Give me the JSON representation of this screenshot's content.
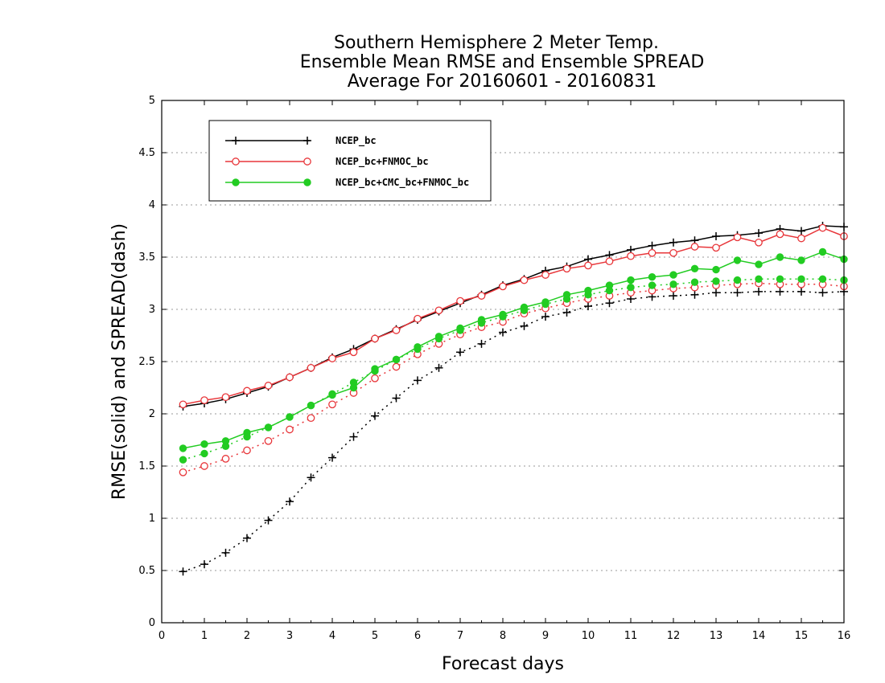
{
  "chart_data": {
    "type": "line",
    "title_lines": [
      "Southern Hemisphere 2 Meter Temp.",
      "Ensemble Mean RMSE and Ensemble SPREAD",
      "Average For 20160601 - 20160831"
    ],
    "xlabel": "Forecast days",
    "ylabel": "RMSE(solid) and SPREAD(dash)",
    "xlim": [
      0,
      16
    ],
    "ylim": [
      0,
      5
    ],
    "x_ticks": [
      "0",
      "1",
      "2",
      "3",
      "4",
      "5",
      "6",
      "7",
      "8",
      "9",
      "10",
      "11",
      "12",
      "13",
      "14",
      "15",
      "16"
    ],
    "y_ticks": [
      "0",
      "0.5",
      "1",
      "1.5",
      "2",
      "2.5",
      "3",
      "3.5",
      "4",
      "4.5",
      "5"
    ],
    "grid": true,
    "legend_placement": "top-left",
    "x": [
      0.5,
      1,
      1.5,
      2,
      2.5,
      3,
      3.5,
      4,
      4.5,
      5,
      5.5,
      6,
      6.5,
      7,
      7.5,
      8,
      8.5,
      9,
      9.5,
      10,
      10.5,
      11,
      11.5,
      12,
      12.5,
      13,
      13.5,
      14,
      14.5,
      15,
      15.5,
      16
    ],
    "series": [
      {
        "name": "NCEP_bc",
        "color": "#000000",
        "marker": "plus",
        "rmse": [
          2.07,
          2.1,
          2.14,
          2.2,
          2.26,
          2.35,
          2.44,
          2.54,
          2.62,
          2.72,
          2.81,
          2.9,
          2.98,
          3.06,
          3.14,
          3.23,
          3.29,
          3.37,
          3.41,
          3.48,
          3.52,
          3.57,
          3.61,
          3.64,
          3.66,
          3.7,
          3.71,
          3.73,
          3.77,
          3.75,
          3.8,
          3.79
        ],
        "spread": [
          0.49,
          0.56,
          0.67,
          0.81,
          0.98,
          1.16,
          1.39,
          1.58,
          1.78,
          1.98,
          2.15,
          2.32,
          2.44,
          2.59,
          2.67,
          2.78,
          2.84,
          2.93,
          2.97,
          3.03,
          3.06,
          3.1,
          3.12,
          3.13,
          3.14,
          3.16,
          3.16,
          3.17,
          3.17,
          3.17,
          3.16,
          3.17
        ]
      },
      {
        "name": "NCEP_bc+FNMOC_bc",
        "color": "#e8363a",
        "marker": "open-circle",
        "rmse": [
          2.09,
          2.13,
          2.16,
          2.22,
          2.27,
          2.35,
          2.44,
          2.53,
          2.59,
          2.72,
          2.8,
          2.91,
          2.99,
          3.08,
          3.13,
          3.22,
          3.28,
          3.33,
          3.39,
          3.42,
          3.46,
          3.51,
          3.54,
          3.54,
          3.6,
          3.59,
          3.69,
          3.64,
          3.72,
          3.68,
          3.78,
          3.7
        ],
        "spread": [
          1.44,
          1.5,
          1.57,
          1.65,
          1.74,
          1.85,
          1.96,
          2.09,
          2.2,
          2.34,
          2.45,
          2.57,
          2.67,
          2.76,
          2.83,
          2.88,
          2.96,
          3.01,
          3.06,
          3.1,
          3.13,
          3.16,
          3.18,
          3.2,
          3.21,
          3.23,
          3.24,
          3.25,
          3.24,
          3.24,
          3.24,
          3.22
        ]
      },
      {
        "name": "NCEP_bc+CMC_bc+FNMOC_bc",
        "color": "#22cc22",
        "marker": "filled-circle",
        "rmse": [
          1.67,
          1.71,
          1.74,
          1.82,
          1.87,
          1.97,
          2.08,
          2.18,
          2.25,
          2.43,
          2.52,
          2.64,
          2.74,
          2.82,
          2.9,
          2.95,
          3.02,
          3.07,
          3.14,
          3.18,
          3.23,
          3.28,
          3.31,
          3.33,
          3.39,
          3.38,
          3.47,
          3.43,
          3.5,
          3.47,
          3.55,
          3.48
        ],
        "spread": [
          1.56,
          1.62,
          1.69,
          1.78,
          1.87,
          1.97,
          2.08,
          2.19,
          2.3,
          2.41,
          2.52,
          2.62,
          2.72,
          2.8,
          2.87,
          2.93,
          2.99,
          3.05,
          3.1,
          3.14,
          3.18,
          3.21,
          3.23,
          3.24,
          3.26,
          3.27,
          3.28,
          3.29,
          3.29,
          3.29,
          3.29,
          3.28
        ]
      }
    ]
  }
}
